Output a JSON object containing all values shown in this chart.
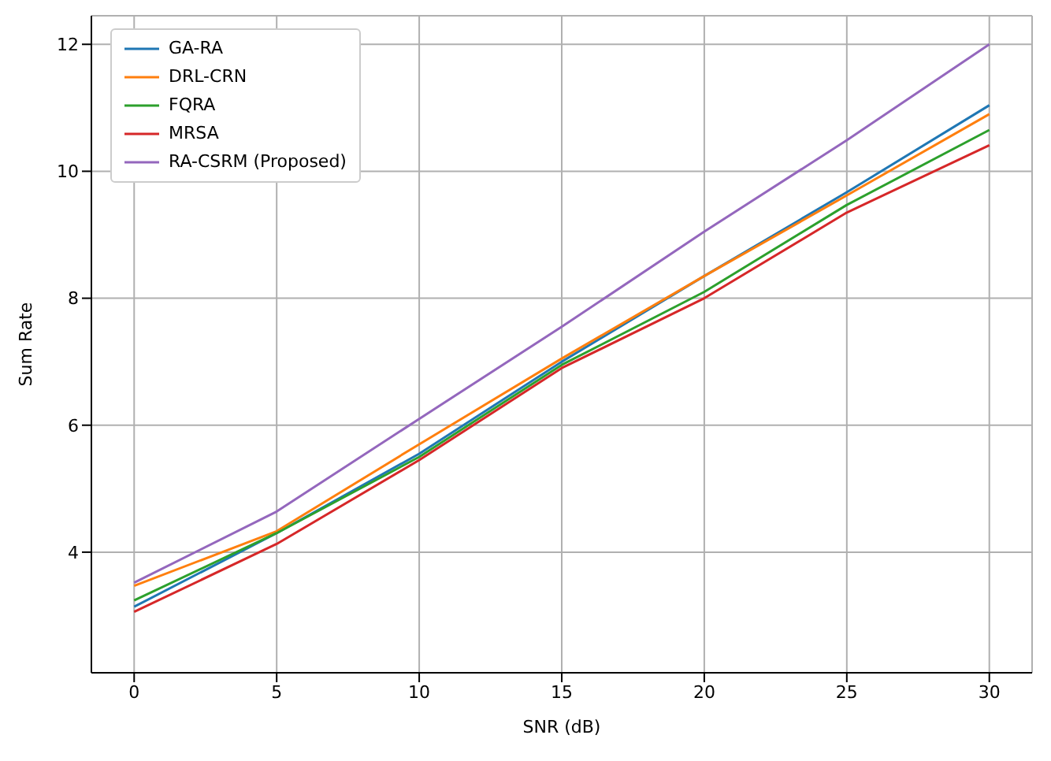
{
  "chart_data": {
    "type": "line",
    "xlabel": "SNR (dB)",
    "ylabel": "Sum Rate",
    "x": [
      0,
      5,
      10,
      15,
      20,
      25,
      30
    ],
    "series": [
      {
        "name": "GA-RA",
        "color": "#1f77b4",
        "values": [
          3.14,
          4.3,
          5.55,
          7.0,
          8.35,
          9.67,
          11.04
        ]
      },
      {
        "name": "DRL-CRN",
        "color": "#ff7f0e",
        "values": [
          3.47,
          4.33,
          5.7,
          7.05,
          8.35,
          9.62,
          10.9
        ]
      },
      {
        "name": "FQRA",
        "color": "#2ca02c",
        "values": [
          3.24,
          4.3,
          5.5,
          6.95,
          8.1,
          9.47,
          10.65
        ]
      },
      {
        "name": "MRSA",
        "color": "#d62728",
        "values": [
          3.06,
          4.13,
          5.45,
          6.9,
          8.0,
          9.35,
          10.41
        ]
      },
      {
        "name": "RA-CSRM (Proposed)",
        "color": "#9467bd",
        "values": [
          3.52,
          4.64,
          6.1,
          7.55,
          9.05,
          10.49,
          12.0
        ]
      }
    ],
    "xlim": [
      -1.5,
      31.5
    ],
    "xticks": [
      0,
      5,
      10,
      15,
      20,
      25,
      30
    ],
    "ylim": [
      2.1,
      12.45
    ],
    "yticks": [
      4,
      6,
      8,
      10,
      12
    ],
    "grid": true,
    "legend": "top left",
    "marker": "none",
    "line_style": "solid"
  }
}
